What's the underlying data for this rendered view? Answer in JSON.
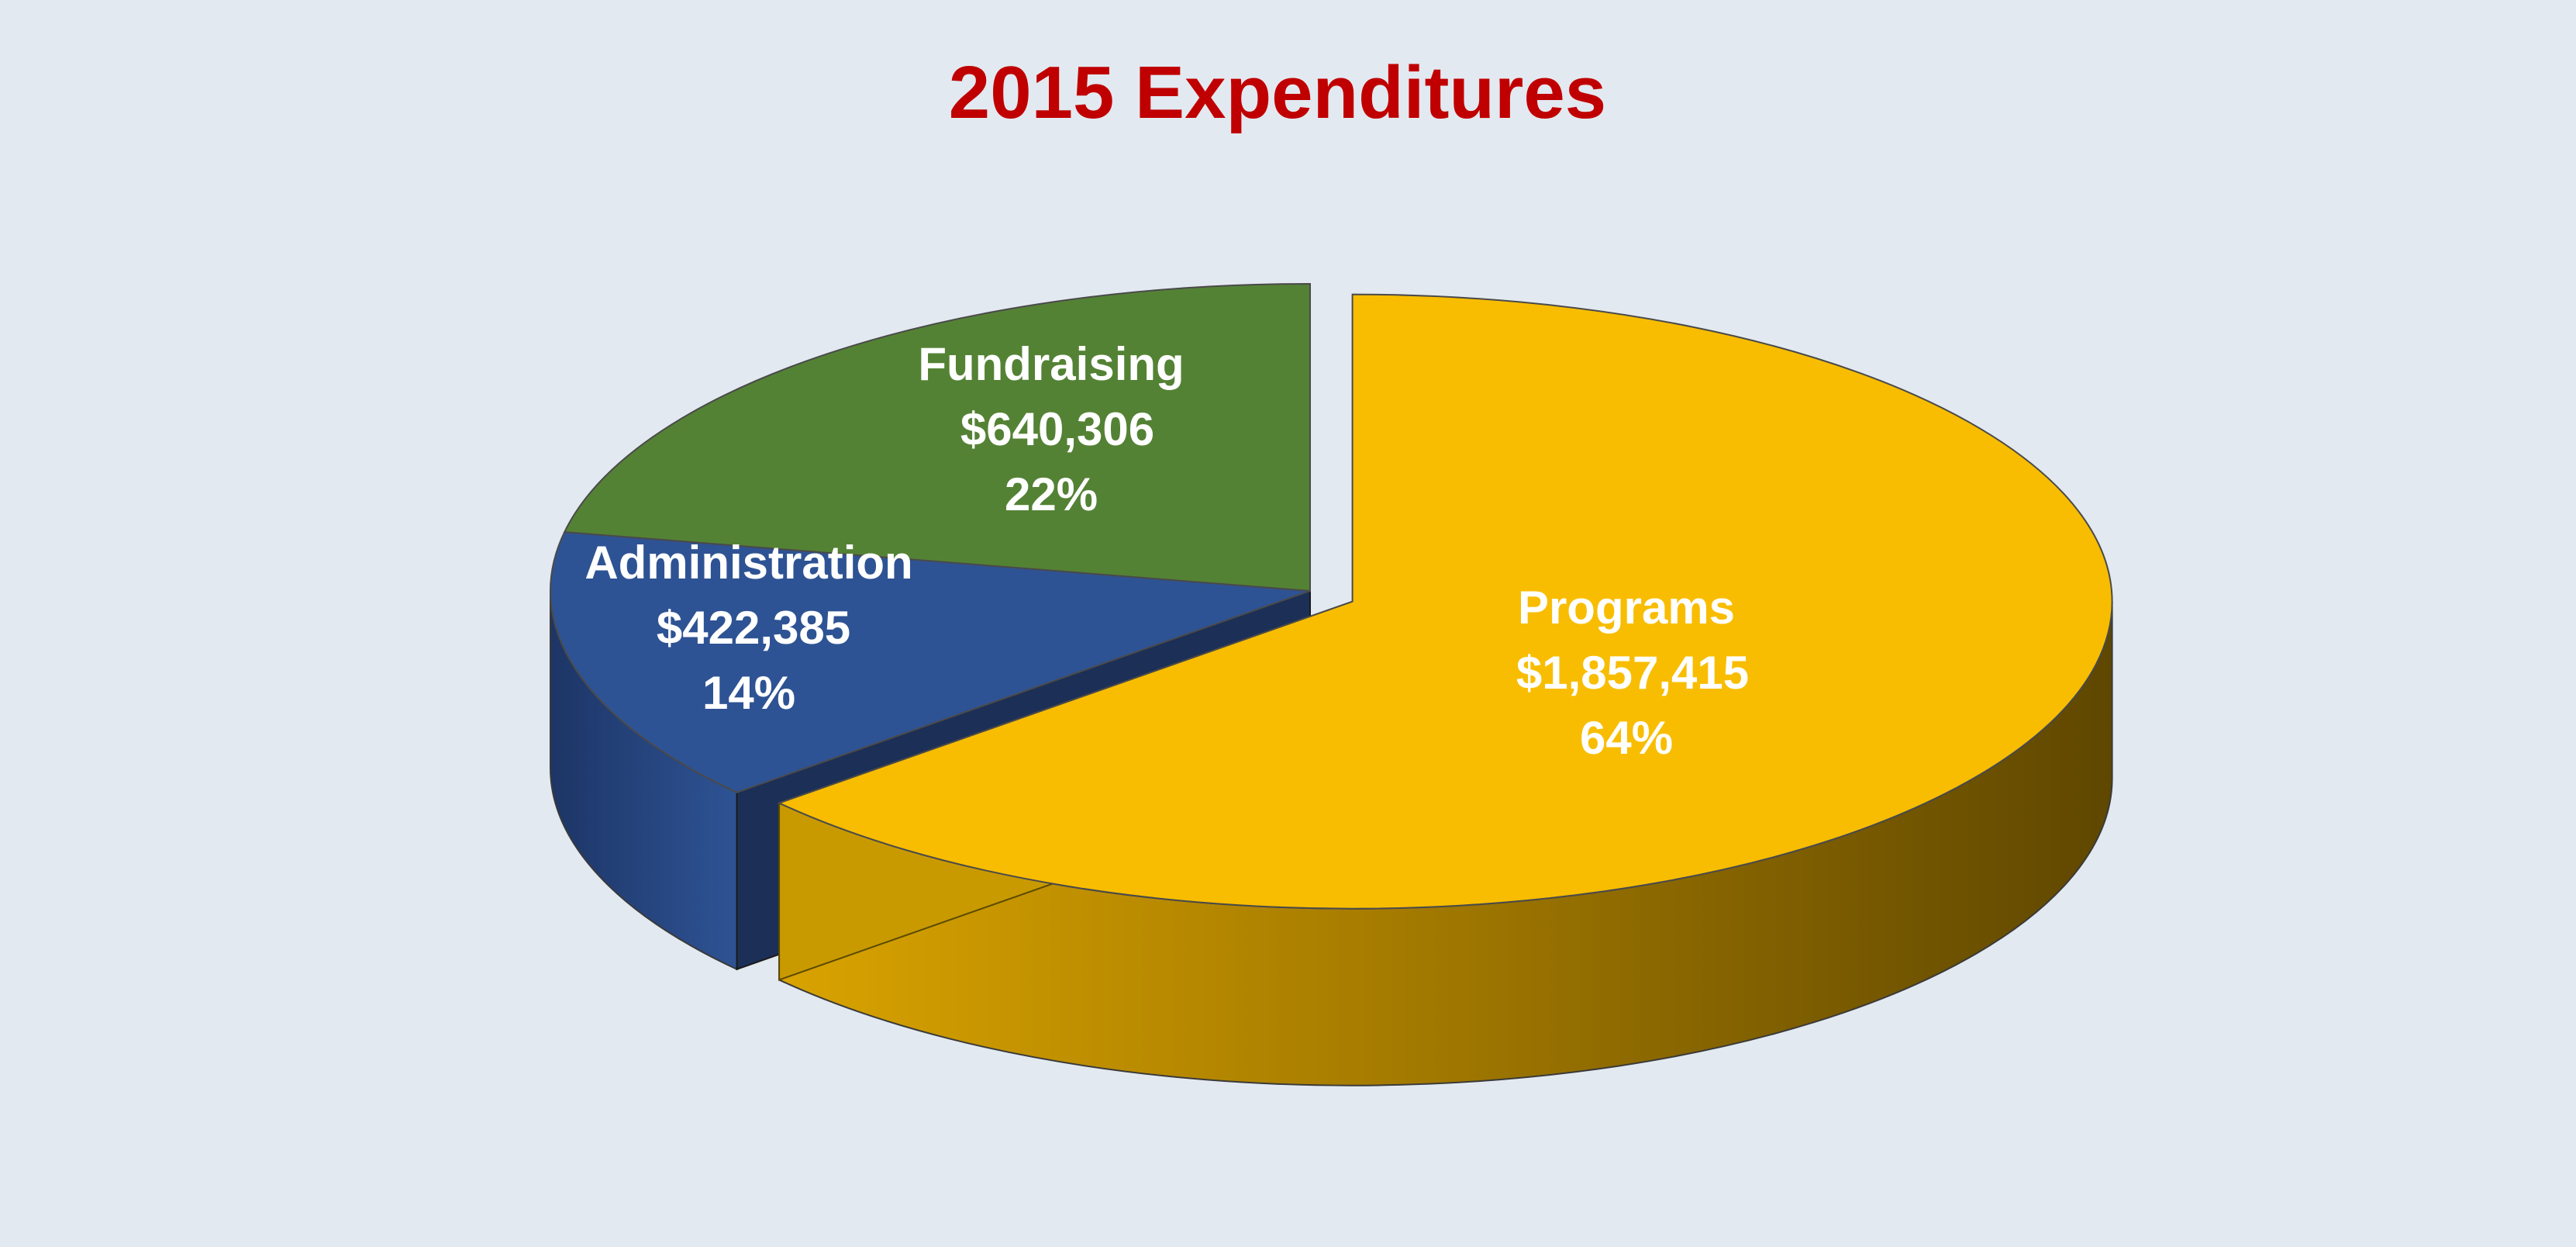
{
  "chart_data": {
    "type": "pie",
    "style": "3d-exploded",
    "title": "2015 Expenditures",
    "slices": [
      {
        "label": "Programs",
        "amount": "$1,857,415",
        "value": 1857415,
        "percent": "64%",
        "color": "#f8bd00",
        "exploded": true
      },
      {
        "label": "Administration",
        "amount": "$422,385",
        "value": 422385,
        "percent": "14%",
        "color": "#2e5394",
        "exploded": false
      },
      {
        "label": "Fundraising",
        "amount": "$640,306",
        "value": 640306,
        "percent": "22%",
        "color": "#548235",
        "exploded": false
      }
    ]
  },
  "colors": {
    "background": "#e3e9f0",
    "title": "#c00000",
    "label_text": "#ffffff"
  }
}
